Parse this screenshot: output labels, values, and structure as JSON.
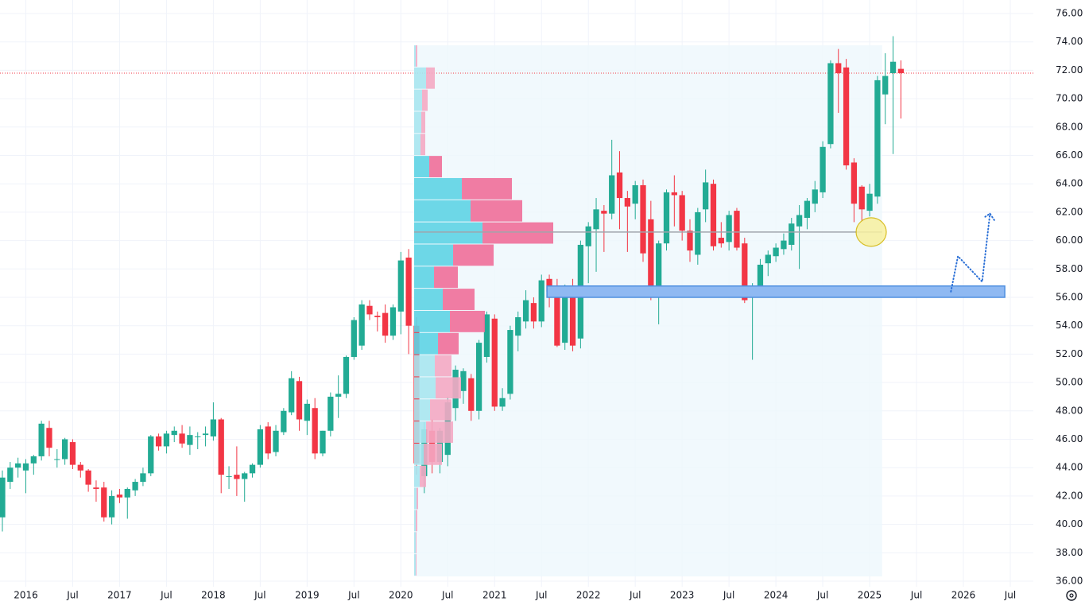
{
  "chart_data": {
    "type": "candlestick",
    "open": [
      40.5,
      43.0,
      44.0,
      43.8,
      44.3,
      44.8,
      46.8,
      44.6,
      44.6,
      45.8,
      44.2,
      43.8,
      42.6,
      42.6,
      40.5,
      42.1,
      41.9,
      42.4,
      43.0,
      43.6,
      46.2,
      45.5,
      46.3,
      46.4,
      45.6,
      46.2,
      46.3,
      46.2,
      47.4,
      43.4,
      43.5,
      43.2,
      43.6,
      44.2,
      46.9,
      45.1,
      46.5,
      47.9,
      50.1,
      47.3,
      48.2,
      45.0,
      46.6,
      49.0,
      49.2,
      51.8,
      52.6,
      55.4,
      54.7,
      54.9,
      53.3,
      55.0,
      58.8,
      54.0,
      43.4,
      46.6,
      44.4,
      44.9,
      48.2,
      49.4,
      50.3,
      48.0,
      51.8,
      54.5,
      48.3,
      49.2,
      53.3,
      54.3,
      55.6,
      54.3,
      57.3,
      56.6,
      52.8,
      56.6,
      53.1,
      59.6,
      60.8,
      62.1,
      61.9,
      64.8,
      63.0,
      62.6,
      63.9,
      61.5,
      56.0,
      59.8,
      63.4,
      63.2,
      60.7,
      59.0,
      62.2,
      64.0,
      60.2,
      59.9,
      62.1,
      59.8,
      56.0,
      56.6,
      58.4,
      58.9,
      59.4,
      59.7,
      61.0,
      61.6,
      62.6,
      63.4,
      66.8,
      72.5,
      72.2,
      65.5,
      63.8,
      62.1,
      63.1,
      70.3,
      71.8,
      72.1
    ],
    "high": [
      43.8,
      44.4,
      44.7,
      44.6,
      44.9,
      47.3,
      47.3,
      45.3,
      46.1,
      46.0,
      44.4,
      43.9,
      43.1,
      43.0,
      42.4,
      42.5,
      42.6,
      43.2,
      44.0,
      46.3,
      46.4,
      46.6,
      46.9,
      47.0,
      46.9,
      46.5,
      46.9,
      48.6,
      47.5,
      44.1,
      45.5,
      43.7,
      44.3,
      47.0,
      47.2,
      47.0,
      48.2,
      50.8,
      50.4,
      48.8,
      48.9,
      46.6,
      49.3,
      50.5,
      51.9,
      54.6,
      55.8,
      55.8,
      55.0,
      55.5,
      55.5,
      59.2,
      59.4,
      54.6,
      47.2,
      47.4,
      46.8,
      49.0,
      51.2,
      51.0,
      50.6,
      53.0,
      55.0,
      54.8,
      49.6,
      54.0,
      55.0,
      56.5,
      56.0,
      57.6,
      57.6,
      57.3,
      56.9,
      57.3,
      60.0,
      61.3,
      63.0,
      62.5,
      67.1,
      66.3,
      63.5,
      64.2,
      64.3,
      62.8,
      60.0,
      63.6,
      64.6,
      63.5,
      61.5,
      62.3,
      65.0,
      64.3,
      61.3,
      62.1,
      62.3,
      60.2,
      57.0,
      58.7,
      59.3,
      59.8,
      60.5,
      61.6,
      62.5,
      63.0,
      64.2,
      67.0,
      72.7,
      73.5,
      72.8,
      65.8,
      63.9,
      64.0,
      71.6,
      73.2,
      74.4,
      72.7
    ],
    "low": [
      39.5,
      42.5,
      43.3,
      42.2,
      43.5,
      44.5,
      44.8,
      44.0,
      44.2,
      43.9,
      43.3,
      42.3,
      41.6,
      40.2,
      40.0,
      41.5,
      40.4,
      42.0,
      42.7,
      43.4,
      45.2,
      45.0,
      45.8,
      45.4,
      44.9,
      45.3,
      45.5,
      45.9,
      42.2,
      42.5,
      42.0,
      41.6,
      43.3,
      44.0,
      44.6,
      44.8,
      46.3,
      47.7,
      46.6,
      46.3,
      44.6,
      44.8,
      46.2,
      47.5,
      48.9,
      51.6,
      52.3,
      54.4,
      53.6,
      52.8,
      53.0,
      53.4,
      52.0,
      43.5,
      42.2,
      43.6,
      43.6,
      44.1,
      47.3,
      48.5,
      47.3,
      47.4,
      51.4,
      48.0,
      48.0,
      48.8,
      52.2,
      53.8,
      53.8,
      53.9,
      55.3,
      52.5,
      52.3,
      52.2,
      52.4,
      57.0,
      57.8,
      59.2,
      61.5,
      60.8,
      59.2,
      61.5,
      58.5,
      55.8,
      54.1,
      59.3,
      61.0,
      60.0,
      58.5,
      58.3,
      61.3,
      59.3,
      59.5,
      59.3,
      59.3,
      55.6,
      51.6,
      56.0,
      57.5,
      58.5,
      59.0,
      59.3,
      58.0,
      60.8,
      62.0,
      63.0,
      66.5,
      69.0,
      65.0,
      61.3,
      61.4,
      61.7,
      62.6,
      68.2,
      66.1,
      68.6
    ],
    "close": [
      43.3,
      44.0,
      44.3,
      44.3,
      44.8,
      47.1,
      45.4,
      44.6,
      46.0,
      44.2,
      43.8,
      42.8,
      42.5,
      40.5,
      42.0,
      41.9,
      42.5,
      43.0,
      43.6,
      46.2,
      45.5,
      46.4,
      46.6,
      45.7,
      46.3,
      46.2,
      46.4,
      47.4,
      43.5,
      43.4,
      43.2,
      43.6,
      44.2,
      46.7,
      45.0,
      46.6,
      48.0,
      50.3,
      47.4,
      48.5,
      45.0,
      46.6,
      49.0,
      49.2,
      51.8,
      54.4,
      55.5,
      54.8,
      54.6,
      53.3,
      55.3,
      58.6,
      54.0,
      44.3,
      46.7,
      44.4,
      46.6,
      48.6,
      50.9,
      50.8,
      48.0,
      52.8,
      54.8,
      48.3,
      48.9,
      53.7,
      54.6,
      55.8,
      54.3,
      57.2,
      56.4,
      52.6,
      56.5,
      52.6,
      59.7,
      61.0,
      62.2,
      61.9,
      64.6,
      63.0,
      62.4,
      63.9,
      59.1,
      56.0,
      59.8,
      63.4,
      63.2,
      60.7,
      59.3,
      62.0,
      64.1,
      59.6,
      59.8,
      61.8,
      59.5,
      55.8,
      56.6,
      58.3,
      59.0,
      59.5,
      60.0,
      61.2,
      61.8,
      62.8,
      63.6,
      66.6,
      72.5,
      71.8,
      65.3,
      62.6,
      62.2,
      63.3,
      71.3,
      71.6,
      72.6,
      71.8
    ],
    "up_color": "#22ab94",
    "down_color": "#f23645",
    "xlim": [
      0,
      129
    ],
    "ylim": [
      36,
      76
    ],
    "xticks": [
      {
        "value": 3,
        "label": "2016"
      },
      {
        "value": 9,
        "label": "Jul"
      },
      {
        "value": 15,
        "label": "2017"
      },
      {
        "value": 21,
        "label": "Jul"
      },
      {
        "value": 27,
        "label": "2018"
      },
      {
        "value": 33,
        "label": "Jul"
      },
      {
        "value": 39,
        "label": "2019"
      },
      {
        "value": 45,
        "label": "Jul"
      },
      {
        "value": 51,
        "label": "2020"
      },
      {
        "value": 57,
        "label": "Jul"
      },
      {
        "value": 63,
        "label": "2021"
      },
      {
        "value": 69,
        "label": "Jul"
      },
      {
        "value": 75,
        "label": "2022"
      },
      {
        "value": 81,
        "label": "Jul"
      },
      {
        "value": 87,
        "label": "2023"
      },
      {
        "value": 93,
        "label": "Jul"
      },
      {
        "value": 99,
        "label": "2024"
      },
      {
        "value": 105,
        "label": "Jul"
      },
      {
        "value": 111,
        "label": "2025"
      },
      {
        "value": 117,
        "label": "Jul"
      },
      {
        "value": 123,
        "label": "2026"
      },
      {
        "value": 129,
        "label": "Jul"
      }
    ],
    "yticks": [
      {
        "value": 36,
        "label": "36.00"
      },
      {
        "value": 38,
        "label": "38.00"
      },
      {
        "value": 40,
        "label": "40.00"
      },
      {
        "value": 42,
        "label": "42.00"
      },
      {
        "value": 44,
        "label": "44.00"
      },
      {
        "value": 46,
        "label": "46.00"
      },
      {
        "value": 48,
        "label": "48.00"
      },
      {
        "value": 50,
        "label": "50.00"
      },
      {
        "value": 52,
        "label": "52.00"
      },
      {
        "value": 54,
        "label": "54.00"
      },
      {
        "value": 56,
        "label": "56.00"
      },
      {
        "value": 58,
        "label": "58.00"
      },
      {
        "value": 60,
        "label": "60.00"
      },
      {
        "value": 62,
        "label": "62.00"
      },
      {
        "value": 64,
        "label": "64.00"
      },
      {
        "value": 66,
        "label": "66.00"
      },
      {
        "value": 68,
        "label": "68.00"
      },
      {
        "value": 70,
        "label": "70.00"
      },
      {
        "value": 72,
        "label": "72.00"
      },
      {
        "value": 74,
        "label": "74.00"
      },
      {
        "value": 76,
        "label": "76.00"
      }
    ],
    "grid": true,
    "last_price": 71.8,
    "last_price_color": "#f23645",
    "range": {
      "x_start": 52.7,
      "x_end": 112.6,
      "color": "#eef7fc"
    },
    "volume_profile": {
      "price_low": 36.34,
      "price_high": 73.76,
      "up": [
        2,
        15,
        10,
        9,
        8,
        19,
        60,
        71,
        86,
        49,
        25,
        36,
        45,
        30,
        26,
        27,
        20,
        15,
        12,
        7,
        3,
        2,
        2,
        2
      ],
      "down": [
        2,
        11,
        7,
        5,
        6,
        16,
        63,
        65,
        89,
        51,
        30,
        40,
        44,
        26,
        21,
        32,
        27,
        34,
        23,
        8,
        2,
        2,
        1,
        1
      ],
      "up_color": "#5ed3e4",
      "down_color": "#ef6e99",
      "up_color_outside": "#a9e6ef",
      "down_color_outside": "#f4a9c3",
      "value_area_rows": [
        5,
        13
      ]
    },
    "level_line": {
      "price": 60.6,
      "x_start": 52.7,
      "x_end": 112.6,
      "color": "#a0a4ab"
    },
    "zone": {
      "low": 56.0,
      "high": 56.8,
      "x_start": 69.7,
      "x_end": 128.3,
      "color": "#8fb9f2",
      "border": "#4f8fe0"
    },
    "marker": {
      "x": 111.2,
      "price": 60.6,
      "color": "#f8f0a0",
      "border": "#d2b400"
    },
    "projection": {
      "x": [
        121.4,
        122.3,
        125.4,
        126.4
      ],
      "y": [
        56.4,
        58.9,
        57.1,
        61.9
      ],
      "color": "#2a6fd6"
    }
  }
}
